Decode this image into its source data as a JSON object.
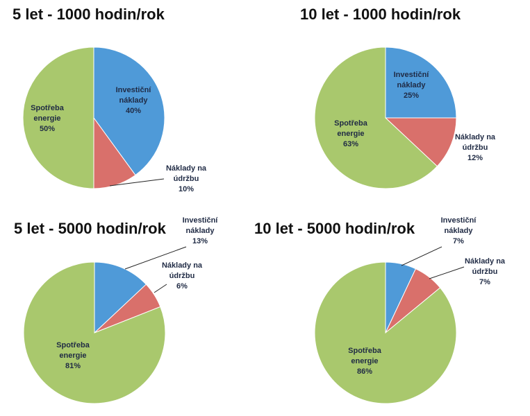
{
  "colors": {
    "investment": "#4f9ad8",
    "maintenance": "#d9706b",
    "energy": "#a9c86d",
    "text": "#1f2a44"
  },
  "chart_data": [
    {
      "type": "pie",
      "title": "5 let - 1000 hodin/rok",
      "slices": [
        {
          "label_lines": [
            "Investiční",
            "náklady"
          ],
          "value": 40,
          "pct_label": "40%",
          "color_key": "investment"
        },
        {
          "label_lines": [
            "Náklady na",
            "údržbu"
          ],
          "value": 10,
          "pct_label": "10%",
          "color_key": "maintenance"
        },
        {
          "label_lines": [
            "Spotřeba",
            "energie"
          ],
          "value": 50,
          "pct_label": "50%",
          "color_key": "energy"
        }
      ]
    },
    {
      "type": "pie",
      "title": "10 let - 1000 hodin/rok",
      "slices": [
        {
          "label_lines": [
            "Investiční",
            "náklady"
          ],
          "value": 25,
          "pct_label": "25%",
          "color_key": "investment"
        },
        {
          "label_lines": [
            "Náklady na",
            "údržbu"
          ],
          "value": 12,
          "pct_label": "12%",
          "color_key": "maintenance"
        },
        {
          "label_lines": [
            "Spotřeba",
            "energie"
          ],
          "value": 63,
          "pct_label": "63%",
          "color_key": "energy"
        }
      ]
    },
    {
      "type": "pie",
      "title": "5 let - 5000 hodin/rok",
      "slices": [
        {
          "label_lines": [
            "Investiční",
            "náklady"
          ],
          "value": 13,
          "pct_label": "13%",
          "color_key": "investment"
        },
        {
          "label_lines": [
            "Náklady na",
            "údržbu"
          ],
          "value": 6,
          "pct_label": "6%",
          "color_key": "maintenance"
        },
        {
          "label_lines": [
            "Spotřeba",
            "energie"
          ],
          "value": 81,
          "pct_label": "81%",
          "color_key": "energy"
        }
      ]
    },
    {
      "type": "pie",
      "title": "10 let - 5000 hodin/rok",
      "slices": [
        {
          "label_lines": [
            "Investiční",
            "náklady"
          ],
          "value": 7,
          "pct_label": "7%",
          "color_key": "investment"
        },
        {
          "label_lines": [
            "Náklady na",
            "údržbu"
          ],
          "value": 7,
          "pct_label": "7%",
          "color_key": "maintenance"
        },
        {
          "label_lines": [
            "Spotřeba",
            "energie"
          ],
          "value": 86,
          "pct_label": "86%",
          "color_key": "energy"
        }
      ]
    }
  ]
}
